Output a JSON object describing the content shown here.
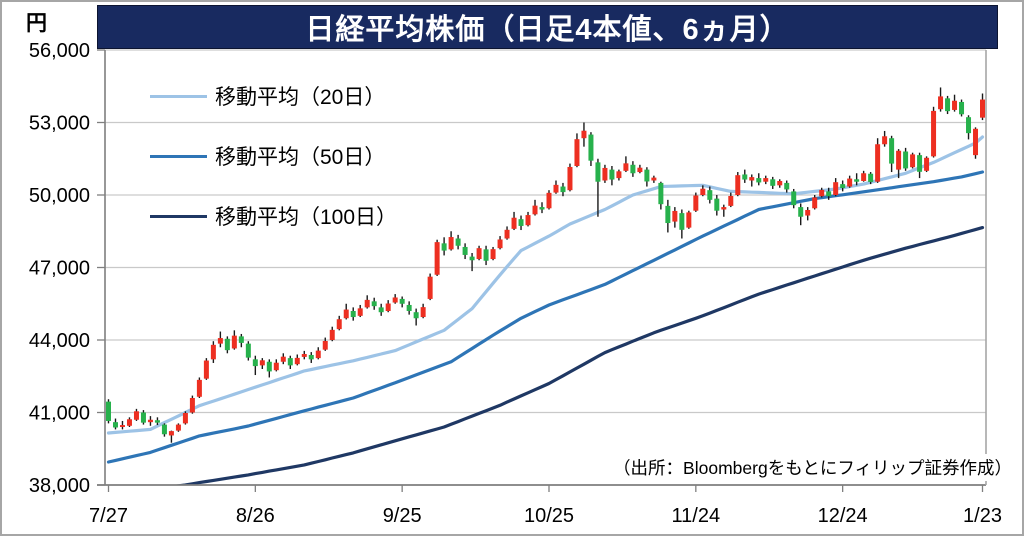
{
  "title": "日経平均株価（日足4本値、6ヵ月）",
  "y_axis": {
    "unit": "円",
    "ticks": [
      {
        "value": 56000,
        "label": "56,000"
      },
      {
        "value": 53000,
        "label": "53,000"
      },
      {
        "value": 50000,
        "label": "50,000"
      },
      {
        "value": 47000,
        "label": "47,000"
      },
      {
        "value": 44000,
        "label": "44,000"
      },
      {
        "value": 41000,
        "label": "41,000"
      },
      {
        "value": 38000,
        "label": "38,000"
      }
    ]
  },
  "x_axis": {
    "tick_labels": [
      "7/27",
      "8/26",
      "9/25",
      "10/25",
      "11/24",
      "12/24",
      "1/23"
    ],
    "tick_day_indices": [
      0,
      21,
      42,
      63,
      84,
      105,
      125
    ]
  },
  "legend": {
    "items": [
      {
        "label": "移動平均（20日）",
        "color": "#9DC3E6"
      },
      {
        "label": "移動平均（50日）",
        "color": "#2E75B6"
      },
      {
        "label": "移動平均（100日）",
        "color": "#1F3864"
      }
    ]
  },
  "source_note": "（出所：Bloombergをもとにフィリップ証券作成）",
  "colors": {
    "up_candle": "#ED2F21",
    "down_candle": "#27B14C",
    "wick": "#1a1a1a",
    "grid": "#c9c9c9",
    "axis": "#7f7f7f",
    "title_bg": "#182A60",
    "title_text": "#ffffff"
  },
  "chart_data": {
    "type": "candlestick",
    "title": "日経平均株価（日足4本値、6ヵ月）",
    "ylabel": "円",
    "ylim": [
      38000,
      56000
    ],
    "y_step": 3000,
    "grid": true,
    "legend_position": "top-left-inside",
    "x_tick_labels": [
      "7/27",
      "8/26",
      "9/25",
      "10/25",
      "11/24",
      "12/24",
      "1/23"
    ],
    "x_tick_day_indices": [
      0,
      21,
      42,
      63,
      84,
      105,
      125
    ],
    "candles_ohlc": [
      [
        41450,
        41550,
        40550,
        40650
      ],
      [
        40600,
        40750,
        40300,
        40380
      ],
      [
        40400,
        40650,
        40300,
        40480
      ],
      [
        40450,
        40800,
        40400,
        40720
      ],
      [
        40700,
        41150,
        40650,
        41050
      ],
      [
        41000,
        41100,
        40500,
        40580
      ],
      [
        40600,
        40850,
        40450,
        40700
      ],
      [
        40680,
        40800,
        40480,
        40580
      ],
      [
        40500,
        40550,
        40000,
        40100
      ],
      [
        40050,
        40250,
        39750,
        40230
      ],
      [
        40250,
        40550,
        40200,
        40500
      ],
      [
        40550,
        41050,
        40500,
        40980
      ],
      [
        41000,
        41700,
        40950,
        41600
      ],
      [
        41650,
        42450,
        41600,
        42350
      ],
      [
        42400,
        43250,
        42350,
        43150
      ],
      [
        43200,
        43950,
        43050,
        43800
      ],
      [
        43850,
        44350,
        43700,
        44080
      ],
      [
        44050,
        44150,
        43450,
        43580
      ],
      [
        43650,
        44400,
        43600,
        44180
      ],
      [
        44150,
        44250,
        43700,
        43880
      ],
      [
        43850,
        43950,
        43150,
        43270
      ],
      [
        43200,
        43350,
        42550,
        42920
      ],
      [
        42950,
        43250,
        42800,
        43160
      ],
      [
        43100,
        43200,
        42450,
        42700
      ],
      [
        42750,
        43200,
        42700,
        43060
      ],
      [
        43100,
        43450,
        43000,
        43310
      ],
      [
        43250,
        43350,
        42800,
        42950
      ],
      [
        43000,
        43400,
        42950,
        43260
      ],
      [
        43300,
        43550,
        43200,
        43420
      ],
      [
        43380,
        43500,
        43050,
        43200
      ],
      [
        43250,
        43700,
        43200,
        43560
      ],
      [
        43600,
        44100,
        43550,
        43960
      ],
      [
        44000,
        44550,
        43950,
        44420
      ],
      [
        44450,
        45000,
        44400,
        44860
      ],
      [
        44900,
        45500,
        44850,
        45260
      ],
      [
        45200,
        45350,
        44800,
        44950
      ],
      [
        45000,
        45450,
        44950,
        45310
      ],
      [
        45350,
        45850,
        45300,
        45660
      ],
      [
        45600,
        45750,
        45250,
        45400
      ],
      [
        45350,
        45500,
        45000,
        45150
      ],
      [
        45200,
        45650,
        45150,
        45510
      ],
      [
        45550,
        45900,
        45500,
        45760
      ],
      [
        45700,
        45800,
        45350,
        45500
      ],
      [
        45450,
        45600,
        45050,
        45200
      ],
      [
        45150,
        45300,
        44600,
        44900
      ],
      [
        44950,
        45500,
        44900,
        45360
      ],
      [
        45700,
        46750,
        45650,
        46620
      ],
      [
        46700,
        48150,
        46650,
        48050
      ],
      [
        48000,
        48250,
        47500,
        47700
      ],
      [
        47750,
        48500,
        47700,
        48260
      ],
      [
        48200,
        48350,
        47750,
        47900
      ],
      [
        47850,
        48000,
        47350,
        47520
      ],
      [
        47450,
        47600,
        46850,
        47300
      ],
      [
        47350,
        47900,
        47300,
        47800
      ],
      [
        47750,
        47900,
        47100,
        47280
      ],
      [
        47350,
        47850,
        47300,
        47760
      ],
      [
        47800,
        48300,
        47750,
        48160
      ],
      [
        48200,
        48700,
        48150,
        48560
      ],
      [
        48600,
        49300,
        48550,
        49060
      ],
      [
        49000,
        49150,
        48550,
        48720
      ],
      [
        48750,
        49300,
        48700,
        49170
      ],
      [
        49200,
        49800,
        49150,
        49560
      ],
      [
        49500,
        49700,
        49250,
        49400
      ],
      [
        49450,
        50200,
        49400,
        50090
      ],
      [
        50100,
        50600,
        50050,
        50420
      ],
      [
        50350,
        50500,
        49950,
        50120
      ],
      [
        50200,
        51300,
        50150,
        51160
      ],
      [
        51200,
        52550,
        51150,
        52310
      ],
      [
        52350,
        53000,
        52000,
        52660
      ],
      [
        52500,
        52600,
        51200,
        51420
      ],
      [
        51350,
        51500,
        49100,
        50550
      ],
      [
        50600,
        51250,
        50500,
        51120
      ],
      [
        51050,
        51200,
        50400,
        50640
      ],
      [
        50700,
        51050,
        50600,
        50980
      ],
      [
        51000,
        51600,
        50950,
        51310
      ],
      [
        51250,
        51400,
        50750,
        50900
      ],
      [
        50950,
        51250,
        50900,
        51130
      ],
      [
        51050,
        51150,
        50350,
        50560
      ],
      [
        50600,
        50800,
        50500,
        50720
      ],
      [
        50500,
        50550,
        49400,
        49620
      ],
      [
        49550,
        49800,
        48450,
        48840
      ],
      [
        48900,
        49500,
        48650,
        49340
      ],
      [
        49250,
        49400,
        48200,
        48560
      ],
      [
        48650,
        49350,
        48600,
        49280
      ],
      [
        49350,
        50100,
        49300,
        49980
      ],
      [
        50000,
        50400,
        49950,
        50260
      ],
      [
        50200,
        50350,
        49650,
        49800
      ],
      [
        49850,
        50000,
        49150,
        49350
      ],
      [
        49400,
        49600,
        49100,
        49500
      ],
      [
        49550,
        50100,
        49500,
        49960
      ],
      [
        50000,
        50950,
        49950,
        50820
      ],
      [
        50850,
        51050,
        50500,
        50640
      ],
      [
        50600,
        50850,
        50350,
        50740
      ],
      [
        50700,
        50900,
        50400,
        50520
      ],
      [
        50550,
        50800,
        50450,
        50700
      ],
      [
        50650,
        50750,
        50250,
        50380
      ],
      [
        50400,
        50650,
        50300,
        50580
      ],
      [
        50500,
        50600,
        50100,
        50230
      ],
      [
        50150,
        50250,
        49450,
        49580
      ],
      [
        49500,
        49650,
        48750,
        49100
      ],
      [
        49150,
        49500,
        48950,
        49380
      ],
      [
        49450,
        50000,
        49400,
        49900
      ],
      [
        49950,
        50300,
        49900,
        50210
      ],
      [
        50150,
        50300,
        49800,
        49950
      ],
      [
        50000,
        50700,
        49950,
        50530
      ],
      [
        50450,
        50600,
        50150,
        50290
      ],
      [
        50350,
        50800,
        50300,
        50680
      ],
      [
        50650,
        50900,
        50400,
        50550
      ],
      [
        50580,
        51000,
        50550,
        50900
      ],
      [
        50880,
        50950,
        50450,
        50540
      ],
      [
        50550,
        52350,
        50500,
        52100
      ],
      [
        52100,
        52650,
        52000,
        52430
      ],
      [
        52350,
        52450,
        50950,
        51300
      ],
      [
        51050,
        51900,
        50700,
        51830
      ],
      [
        51800,
        51950,
        51000,
        51100
      ],
      [
        51150,
        51750,
        51100,
        51680
      ],
      [
        51650,
        51750,
        50700,
        50960
      ],
      [
        51000,
        51600,
        50950,
        51540
      ],
      [
        51600,
        53650,
        51550,
        53480
      ],
      [
        53550,
        54450,
        53450,
        54080
      ],
      [
        54000,
        54100,
        53350,
        53470
      ],
      [
        53520,
        54150,
        53450,
        53900
      ],
      [
        53850,
        53950,
        53250,
        53340
      ],
      [
        53220,
        53300,
        52300,
        52560
      ],
      [
        51650,
        52800,
        51500,
        52740
      ],
      [
        53200,
        54200,
        53100,
        53950
      ]
    ],
    "moving_averages": [
      {
        "name": "移動平均（20日）",
        "color": "#9DC3E6",
        "anchors": [
          [
            0,
            40150
          ],
          [
            6,
            40300
          ],
          [
            13,
            41280
          ],
          [
            20,
            41950
          ],
          [
            28,
            42720
          ],
          [
            35,
            43140
          ],
          [
            41,
            43560
          ],
          [
            48,
            44400
          ],
          [
            52,
            45300
          ],
          [
            56,
            46700
          ],
          [
            59,
            47700
          ],
          [
            63,
            48300
          ],
          [
            66,
            48800
          ],
          [
            71,
            49400
          ],
          [
            75,
            50000
          ],
          [
            79,
            50350
          ],
          [
            85,
            50400
          ],
          [
            89,
            50150
          ],
          [
            98,
            50050
          ],
          [
            104,
            50250
          ],
          [
            108,
            50450
          ],
          [
            114,
            50900
          ],
          [
            118,
            51350
          ],
          [
            121,
            51750
          ],
          [
            124,
            52150
          ],
          [
            125,
            52400
          ]
        ]
      },
      {
        "name": "移動平均（50日）",
        "color": "#2E75B6",
        "anchors": [
          [
            0,
            38950
          ],
          [
            6,
            39350
          ],
          [
            13,
            40030
          ],
          [
            20,
            40440
          ],
          [
            28,
            41070
          ],
          [
            35,
            41600
          ],
          [
            41,
            42230
          ],
          [
            49,
            43100
          ],
          [
            55,
            44200
          ],
          [
            59,
            44900
          ],
          [
            63,
            45450
          ],
          [
            71,
            46300
          ],
          [
            78,
            47300
          ],
          [
            85,
            48300
          ],
          [
            93,
            49400
          ],
          [
            101,
            49850
          ],
          [
            106,
            50050
          ],
          [
            112,
            50300
          ],
          [
            118,
            50550
          ],
          [
            122,
            50750
          ],
          [
            125,
            50950
          ]
        ]
      },
      {
        "name": "移動平均（100日）",
        "color": "#1F3864",
        "anchors": [
          [
            0,
            37620
          ],
          [
            11,
            38000
          ],
          [
            13,
            38100
          ],
          [
            20,
            38420
          ],
          [
            28,
            38830
          ],
          [
            35,
            39330
          ],
          [
            41,
            39830
          ],
          [
            48,
            40400
          ],
          [
            56,
            41300
          ],
          [
            63,
            42200
          ],
          [
            71,
            43480
          ],
          [
            78,
            44300
          ],
          [
            85,
            45000
          ],
          [
            93,
            45900
          ],
          [
            101,
            46650
          ],
          [
            108,
            47300
          ],
          [
            114,
            47800
          ],
          [
            120,
            48250
          ],
          [
            125,
            48650
          ]
        ]
      }
    ],
    "source_note": "（出所：Bloombergをもとにフィリップ証券作成）"
  }
}
